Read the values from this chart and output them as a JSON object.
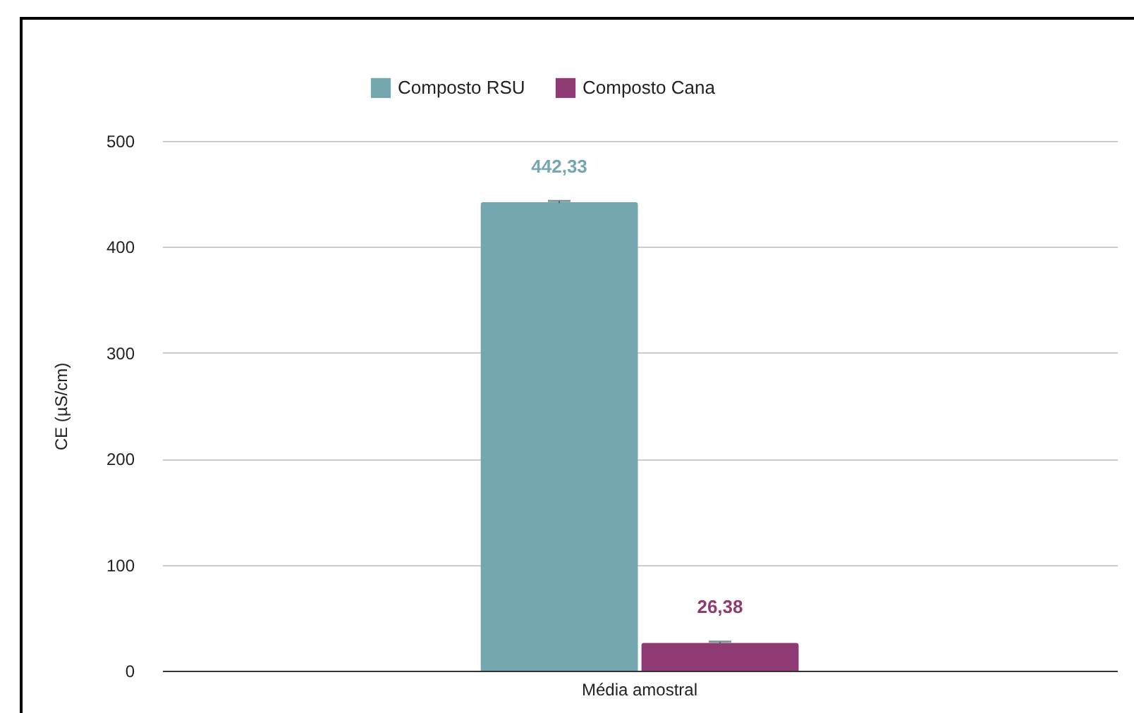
{
  "chart_data": {
    "type": "bar",
    "ylabel": "CE (µS/cm)",
    "categories": [
      "Média amostral"
    ],
    "series": [
      {
        "name": "Composto RSU",
        "color": "#74a7b0",
        "values": [
          442.33
        ],
        "value_labels": [
          "442,33"
        ],
        "errors": [
          1
        ]
      },
      {
        "name": "Composto Cana",
        "color": "#8e3b73",
        "values": [
          26.38
        ],
        "value_labels": [
          "26,38"
        ],
        "errors": [
          1
        ]
      }
    ],
    "ylim": [
      0,
      500
    ],
    "yticks": [
      0,
      100,
      200,
      300,
      400,
      500
    ],
    "grid": "y",
    "legend": "top"
  }
}
